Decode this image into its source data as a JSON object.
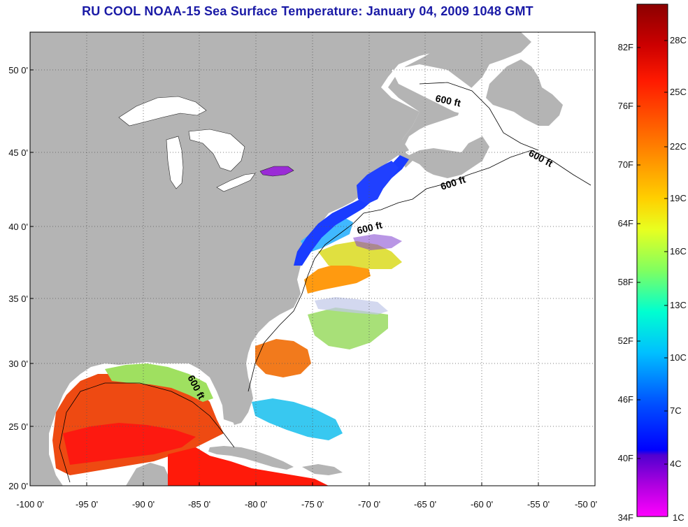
{
  "title": "RU COOL  NOAA-15  Sea Surface Temperature:  January 04, 2009 1048 GMT",
  "map": {
    "x_ticks": [
      "-100 0'",
      "-95 0'",
      "-90 0'",
      "-85 0'",
      "-80 0'",
      "-75 0'",
      "-70 0'",
      "-65 0'",
      "-60 0'",
      "-55 0'",
      "-50 0'"
    ],
    "y_ticks": [
      "20 0'",
      "25 0'",
      "30 0'",
      "35 0'",
      "40 0'",
      "45 0'",
      "50 0'"
    ],
    "lon_range": [
      -100,
      -50
    ],
    "lat_range": [
      20,
      52.5
    ],
    "contour_labels": [
      "600 ft",
      "600 ft",
      "600 ft",
      "600 ft",
      "600 ft"
    ],
    "colors": {
      "land": "#b4b4b4",
      "ocean_nodata": "#ffffff",
      "lake": "#ffffff",
      "grid": "#555555"
    }
  },
  "colorbar": {
    "fahrenheit_labels": [
      "82F",
      "76F",
      "70F",
      "64F",
      "58F",
      "52F",
      "46F",
      "40F",
      "34F"
    ],
    "celsius_labels": [
      "28C",
      "25C",
      "22C",
      "19C",
      "16C",
      "13C",
      "10C",
      "7C",
      "4C",
      "1C"
    ],
    "gradient_stops": [
      "#8b0000",
      "#ff0000",
      "#ff8000",
      "#ffff00",
      "#80ff60",
      "#00ffff",
      "#0080ff",
      "#0000ff",
      "#8000c0",
      "#ff00ff"
    ]
  }
}
